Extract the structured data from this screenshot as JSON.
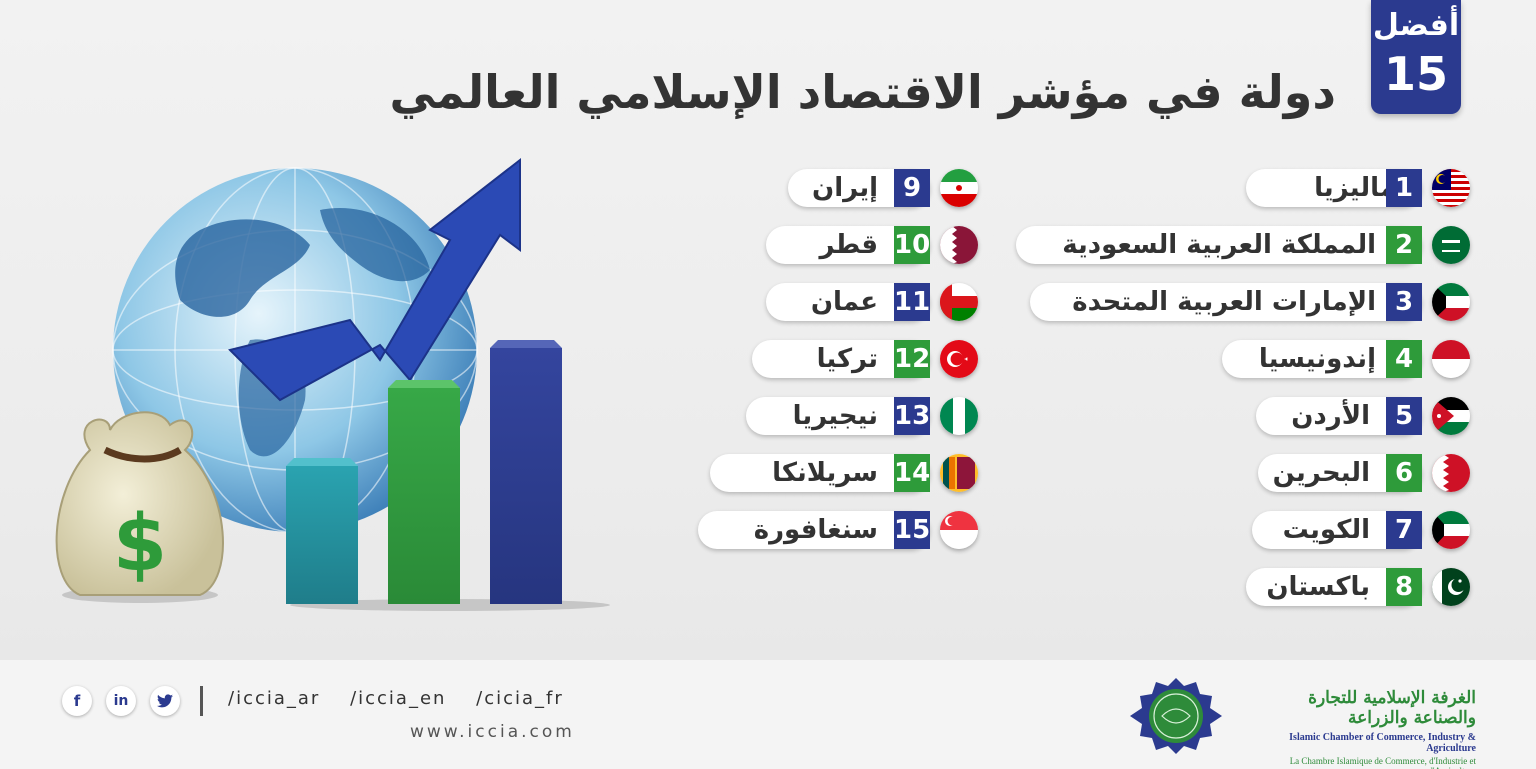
{
  "header": {
    "badge_top": "أفضل",
    "badge_number": "15",
    "title": "دولة في مؤشر الاقتصاد الإسلامي العالمي"
  },
  "countries": [
    {
      "rank": "1",
      "name": "ماليزيا",
      "flag": "malaysia-flag-icon"
    },
    {
      "rank": "2",
      "name": "المملكة العربية السعودية",
      "flag": "saudi-arabia-flag-icon"
    },
    {
      "rank": "3",
      "name": "الإمارات العربية المتحدة",
      "flag": "kuwait-style-flag-icon"
    },
    {
      "rank": "4",
      "name": "إندونيسيا",
      "flag": "indonesia-flag-icon"
    },
    {
      "rank": "5",
      "name": "الأردن",
      "flag": "jordan-flag-icon"
    },
    {
      "rank": "6",
      "name": "البحرين",
      "flag": "bahrain-flag-icon"
    },
    {
      "rank": "7",
      "name": "الكويت",
      "flag": "kuwait-flag-icon"
    },
    {
      "rank": "8",
      "name": "باكستان",
      "flag": "pakistan-flag-icon"
    },
    {
      "rank": "9",
      "name": "إيران",
      "flag": "iran-flag-icon"
    },
    {
      "rank": "10",
      "name": "قطر",
      "flag": "qatar-flag-icon"
    },
    {
      "rank": "11",
      "name": "عمان",
      "flag": "oman-flag-icon"
    },
    {
      "rank": "12",
      "name": "تركيا",
      "flag": "turkey-flag-icon"
    },
    {
      "rank": "13",
      "name": "نيجيريا",
      "flag": "nigeria-flag-icon"
    },
    {
      "rank": "14",
      "name": "سريلانكا",
      "flag": "sri-lanka-flag-icon"
    },
    {
      "rank": "15",
      "name": "سنغافورة",
      "flag": "singapore-flag-icon"
    }
  ],
  "colors": {
    "blue": "#2b3a8f",
    "green": "#2e9b3a",
    "teal": "#2aa3b0"
  },
  "footer": {
    "social": [
      "f",
      "in",
      "twitter-icon"
    ],
    "handles": [
      "/iccia_ar",
      "/iccia_en",
      "/cicia_fr"
    ],
    "website": "www.iccia.com",
    "org_ar": "الغرفة الإسلامية للتجارة والصناعة والزراعة",
    "org_en": "Islamic Chamber of Commerce, Industry & Agriculture",
    "org_fr": "La Chambre Islamique de Commerce, d'Industrie et d'Agriculture"
  }
}
